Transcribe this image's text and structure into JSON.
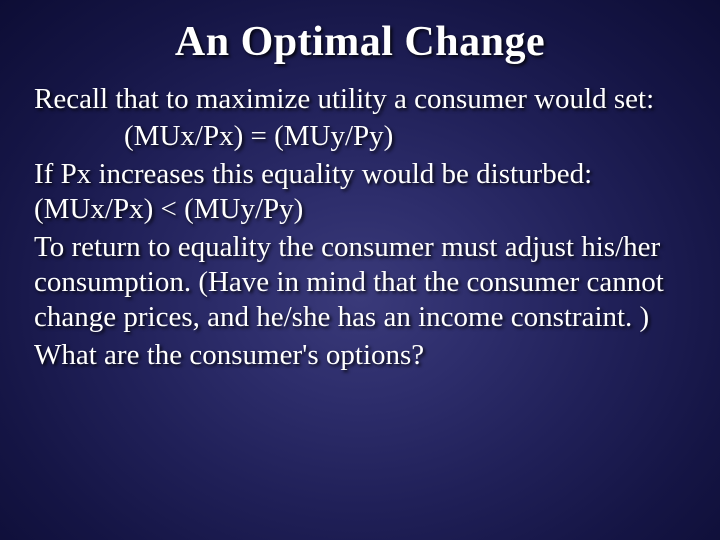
{
  "slide": {
    "title": "An Optimal Change",
    "title_fontsize": 42,
    "title_color": "#ffffff",
    "body_fontsize": 29,
    "body_color": "#ffffff",
    "background_center": "#3a3a7a",
    "background_edge": "#0d0d35",
    "shadow_color": "#000000",
    "font_family": "Garamond",
    "paragraphs": {
      "p1": "Recall that to maximize utility a consumer would set:",
      "p2": "(MUx/Px) = (MUy/Py)",
      "p3": "If Px increases this equality would be disturbed: (MUx/Px) < (MUy/Py)",
      "p4": "To return to equality the consumer must adjust his/her consumption. (Have in mind that the consumer cannot change prices, and he/she has an income constraint. )",
      "p5": "What are the consumer's options?"
    }
  }
}
